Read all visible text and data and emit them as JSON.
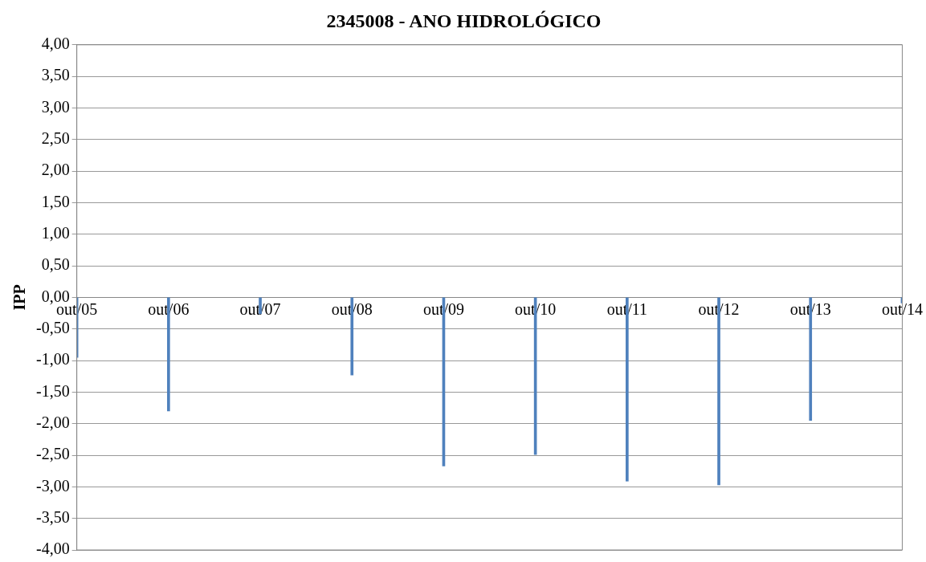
{
  "chart_data": {
    "type": "bar",
    "title": "2345008 - ANO HIDROLÓGICO",
    "ylabel": "IPP",
    "categories": [
      "out/05",
      "out/06",
      "out/07",
      "out/08",
      "out/09",
      "out/10",
      "out/11",
      "out/12",
      "out/13",
      "out/14"
    ],
    "values": [
      -0.95,
      -1.8,
      -0.26,
      -1.23,
      -2.67,
      -2.49,
      -2.91,
      -2.97,
      -1.95,
      -0.09
    ],
    "color": "#4f81bd",
    "ylim": [
      -4,
      4
    ],
    "yticks": [
      {
        "value": -4,
        "label": "-4,00"
      },
      {
        "value": -3.5,
        "label": "-3,50"
      },
      {
        "value": -3,
        "label": "-3,00"
      },
      {
        "value": -2.5,
        "label": "-2,50"
      },
      {
        "value": -2,
        "label": "-2,00"
      },
      {
        "value": -1.5,
        "label": "-1,50"
      },
      {
        "value": -1,
        "label": "-1,00"
      },
      {
        "value": -0.5,
        "label": "-0,50"
      },
      {
        "value": 0,
        "label": "0,00"
      },
      {
        "value": 0.5,
        "label": "0,50"
      },
      {
        "value": 1,
        "label": "1,00"
      },
      {
        "value": 1.5,
        "label": "1,50"
      },
      {
        "value": 2,
        "label": "2,00"
      },
      {
        "value": 2.5,
        "label": "2,50"
      },
      {
        "value": 3,
        "label": "3,00"
      },
      {
        "value": 3.5,
        "label": "3,50"
      },
      {
        "value": 4,
        "label": "4,00"
      }
    ],
    "grid": "y",
    "legend": false
  }
}
